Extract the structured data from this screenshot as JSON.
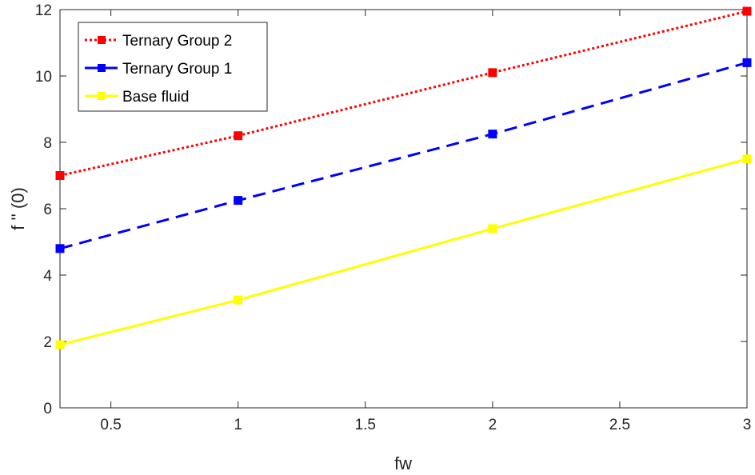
{
  "chart_data": {
    "type": "line",
    "title": "",
    "xlabel": "fw",
    "ylabel": "f '' (0)",
    "xlim": [
      0.3,
      3
    ],
    "ylim": [
      0,
      12
    ],
    "xticks": [
      0.5,
      1,
      1.5,
      2,
      2.5,
      3
    ],
    "xtick_labels": [
      "0.5",
      "1",
      "1.5",
      "2",
      "2.5",
      "3"
    ],
    "yticks": [
      0,
      2,
      4,
      6,
      8,
      10,
      12
    ],
    "ytick_labels": [
      "0",
      "2",
      "4",
      "6",
      "8",
      "10",
      "12"
    ],
    "grid": false,
    "legend_position": "top-left",
    "x": [
      0.3,
      1,
      2,
      3
    ],
    "series": [
      {
        "name": "Ternary Group 2",
        "values": [
          7.0,
          8.2,
          10.1,
          11.95
        ],
        "color": "#ff0000",
        "line_style": "dotted",
        "marker": "square"
      },
      {
        "name": "Ternary Group 1",
        "values": [
          4.8,
          6.25,
          8.25,
          10.4
        ],
        "color": "#0000ff",
        "line_style": "dashed",
        "marker": "square"
      },
      {
        "name": "Base fluid",
        "values": [
          1.9,
          3.25,
          5.4,
          7.5
        ],
        "color": "#ffff00",
        "line_style": "solid",
        "marker": "square"
      }
    ]
  }
}
